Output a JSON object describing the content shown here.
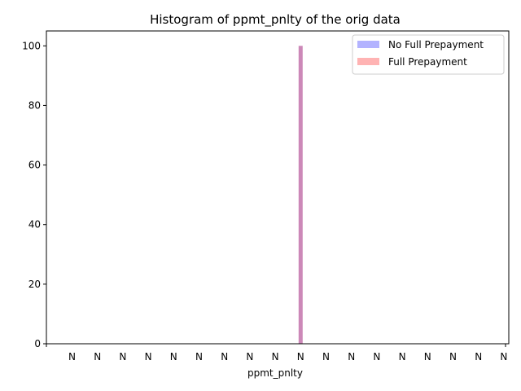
{
  "chart_data": {
    "type": "bar",
    "title": "Histogram of ppmt_pnlty of the orig data",
    "xlabel": "ppmt_pnlty",
    "ylabel": "",
    "x_tick_labels": [
      "N",
      "N",
      "N",
      "N",
      "N",
      "N",
      "N",
      "N",
      "N",
      "N",
      "N",
      "N",
      "N",
      "N",
      "N",
      "N",
      "N",
      "N"
    ],
    "ylim": [
      0,
      105
    ],
    "yticks": [
      0,
      20,
      40,
      60,
      80,
      100
    ],
    "grid": false,
    "legend_position": "top-right",
    "overlap_color": "#cc88b8",
    "bars": [
      {
        "category": "N",
        "x_index": 9,
        "value": 100
      }
    ],
    "series": [
      {
        "name": "No Full Prepayment",
        "color": "#b3b3ff",
        "values": [
          100
        ]
      },
      {
        "name": "Full Prepayment",
        "color": "#ffb3b3",
        "values": [
          100
        ]
      }
    ]
  }
}
